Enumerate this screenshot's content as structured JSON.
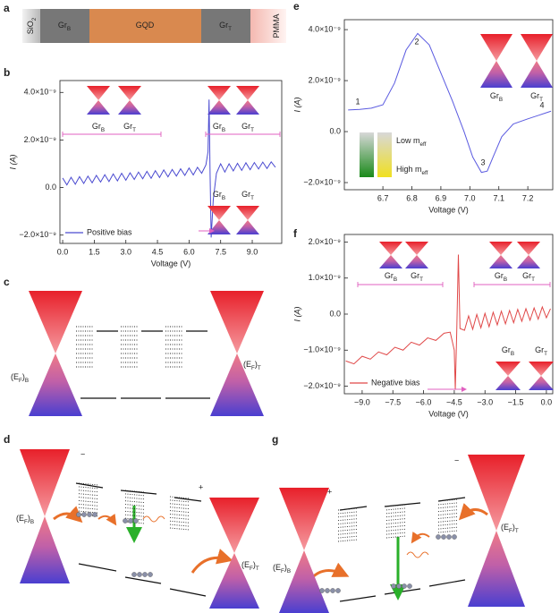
{
  "panel_letters": [
    "a",
    "b",
    "c",
    "d",
    "e",
    "f",
    "g"
  ],
  "layers": [
    [
      "SiO",
      "2"
    ],
    [
      "Gr",
      "B"
    ],
    [
      "GQD"
    ],
    [
      "Gr",
      "T"
    ],
    [
      "PMMA"
    ]
  ],
  "chart_data": [
    {
      "type": "line",
      "xlabel": "Voltage (V)",
      "ylabel": "I (A)",
      "xlim": [
        -0.13,
        10.4
      ],
      "ylim": [
        -2.35e-09,
        4.5e-09
      ],
      "xticks": [
        {
          "value": 0,
          "label": "0.0"
        },
        1.5,
        {
          "value": 3,
          "label": "3.0"
        },
        4.5,
        {
          "value": 6,
          "label": "6.0"
        },
        7.5,
        {
          "value": 9,
          "label": "9.0"
        }
      ],
      "yticks": [
        {
          "value": -2e-09,
          "label": "−2.0×10⁻⁹"
        },
        {
          "value": 0,
          "label": "0.0"
        },
        {
          "value": 2e-09,
          "label": "2.0×10⁻⁹"
        },
        {
          "value": 4e-09,
          "label": "4.0×10⁻⁹"
        }
      ],
      "legend": "lower left",
      "x": [
        0,
        0.2,
        0.4,
        0.6,
        0.8,
        1.0,
        1.2,
        1.4,
        1.6,
        1.8,
        2.0,
        2.2,
        2.4,
        2.6,
        2.8,
        3.0,
        3.2,
        3.4,
        3.6,
        3.8,
        4.0,
        4.2,
        4.4,
        4.6,
        4.8,
        5.0,
        5.2,
        5.4,
        5.6,
        5.8,
        6.0,
        6.2,
        6.4,
        6.6,
        6.8,
        6.9,
        6.95,
        7.0,
        7.05,
        7.15,
        7.3,
        7.5,
        7.7,
        7.9,
        8.1,
        8.3,
        8.5,
        8.7,
        8.9,
        9.1,
        9.3,
        9.5,
        9.7,
        9.9,
        10.1
      ],
      "series": [
        {
          "name": "Positive bias",
          "color": "#4a4ad0",
          "values": [
            4e-10,
            1.1e-10,
            4.3e-10,
            1.4e-10,
            4.6e-10,
            1.7e-10,
            4.8e-10,
            2e-10,
            5.1e-10,
            2.3e-10,
            5.4e-10,
            2.5e-10,
            5.7e-10,
            2.8e-10,
            6e-10,
            3.1e-10,
            6.2e-10,
            3.4e-10,
            6.5e-10,
            3.7e-10,
            6.8e-10,
            3.9e-10,
            7.1e-10,
            4.2e-10,
            7.4e-10,
            4.5e-10,
            7.6e-10,
            4.8e-10,
            7.9e-10,
            5.1e-10,
            8.2e-10,
            5.3e-10,
            8.5e-10,
            6e-10,
            9.5e-10,
            1.5e-09,
            3.7e-09,
            5e-10,
            -2.1e-09,
            -5e-10,
            6e-10,
            1e-09,
            6.5e-10,
            1e-09,
            7e-10,
            1.02e-09,
            7.2e-10,
            1.04e-09,
            7.5e-10,
            1.05e-09,
            7.8e-10,
            1.07e-09,
            8e-10,
            1.08e-09,
            8.5e-10
          ]
        }
      ],
      "insets": [
        [
          [
            "Gr",
            "B"
          ],
          [
            "Gr",
            "T"
          ]
        ],
        [
          [
            "Gr",
            "B"
          ],
          [
            "Gr",
            "T"
          ]
        ],
        [
          [
            "Gr",
            "B"
          ],
          [
            "Gr",
            "T"
          ]
        ]
      ]
    },
    {
      "type": "line",
      "xlabel": "Voltage (V)",
      "ylabel": "I (A)",
      "xlim": [
        6.567,
        7.286
      ],
      "ylim": [
        -2.28e-09,
        4.39e-09
      ],
      "xticks": [
        6.7,
        6.8,
        6.9,
        {
          "value": 7,
          "label": "7.0"
        },
        7.1,
        7.2
      ],
      "yticks": [
        {
          "value": -2e-09,
          "label": "−2.0×10⁻⁹"
        },
        {
          "value": 0,
          "label": "0.0"
        },
        {
          "value": 2e-09,
          "label": "2.0×10⁻⁹"
        },
        {
          "value": 4e-09,
          "label": "4.0×10⁻⁹"
        }
      ],
      "x": [
        6.58,
        6.62,
        6.66,
        6.7,
        6.74,
        6.78,
        6.82,
        6.86,
        6.9,
        6.94,
        6.98,
        7.01,
        7.04,
        7.06,
        7.08,
        7.11,
        7.15,
        7.2,
        7.24,
        7.28
      ],
      "series": [
        {
          "color": "#5a5ae0",
          "values": [
            8.5e-10,
            8.7e-10,
            9.2e-10,
            1.05e-09,
            1.9e-09,
            3.2e-09,
            3.85e-09,
            3.4e-09,
            2.3e-09,
            1.2e-09,
            0.0,
            -1e-09,
            -1.6e-09,
            -1.55e-09,
            -1e-09,
            -2e-10,
            3e-10,
            5e-10,
            6.5e-10,
            8e-10
          ]
        }
      ],
      "point_labels": [
        "1",
        "2",
        "3",
        "4"
      ],
      "point_label_colors": [
        "#3030a0",
        "#d8c400",
        "#22aa22",
        "#e03030"
      ],
      "insets": [
        [
          [
            "Gr",
            "B"
          ],
          [
            "Gr",
            "T"
          ]
        ]
      ],
      "colorbar_labels": [
        [
          "Low m",
          "eff"
        ],
        [
          "High m",
          "eff"
        ]
      ]
    },
    {
      "type": "line",
      "xlabel": "Voltage (V)",
      "ylabel": "I (A)",
      "xlim": [
        -9.87,
        0.31
      ],
      "ylim": [
        -2.21e-09,
        2.21e-09
      ],
      "xticks": [
        {
          "value": -9,
          "label": "−9.0"
        },
        {
          "value": -7.5,
          "label": "−7.5"
        },
        {
          "value": -6,
          "label": "−6.0"
        },
        {
          "value": -4.5,
          "label": "−4.5"
        },
        {
          "value": -3,
          "label": "−3.0"
        },
        {
          "value": -1.5,
          "label": "−1.5"
        },
        {
          "value": 0,
          "label": "0.0"
        }
      ],
      "yticks": [
        {
          "value": -2e-09,
          "label": "−2.0×10⁻⁹"
        },
        {
          "value": -1e-09,
          "label": "−1.0×10⁻⁹"
        },
        {
          "value": 0,
          "label": "0.0"
        },
        {
          "value": 1e-09,
          "label": "1.0×10⁻⁹"
        },
        {
          "value": 2e-09,
          "label": "2.0×10⁻⁹"
        }
      ],
      "legend": "lower left",
      "x": [
        -9.8,
        -9.4,
        -9.0,
        -8.6,
        -8.2,
        -7.8,
        -7.4,
        -7.0,
        -6.6,
        -6.2,
        -5.8,
        -5.4,
        -5.0,
        -4.7,
        -4.5,
        -4.45,
        -4.38,
        -4.3,
        -4.22,
        -4.0,
        -3.8,
        -3.6,
        -3.4,
        -3.2,
        -3.0,
        -2.8,
        -2.6,
        -2.4,
        -2.2,
        -2.0,
        -1.8,
        -1.6,
        -1.4,
        -1.2,
        -1.0,
        -0.8,
        -0.6,
        -0.4,
        -0.2,
        0.0,
        0.2
      ],
      "series": [
        {
          "name": "Negative bias",
          "color": "#e04848",
          "values": [
            -1.3e-09,
            -1.38e-09,
            -1.17e-09,
            -1.25e-09,
            -1.05e-09,
            -1.13e-09,
            -9.2e-10,
            -1e-09,
            -7.8e-10,
            -8.6e-10,
            -6.6e-10,
            -7.3e-10,
            -5.3e-10,
            -5e-10,
            -1e-09,
            -2.1e-09,
            -5e-10,
            1.65e-09,
            -4e-10,
            -4.5e-10,
            -5e-11,
            -4.2e-10,
            -1e-11,
            -3.8e-10,
            2e-11,
            -3.5e-10,
            5e-11,
            -3e-10,
            8e-11,
            -2.7e-10,
            1e-10,
            -2.4e-10,
            1.3e-10,
            -2e-10,
            1.5e-10,
            -1.7e-10,
            1.7e-10,
            -1.4e-10,
            2e-10,
            -1e-10,
            1.5e-10
          ]
        }
      ],
      "insets": [
        [
          [
            "Gr",
            "B"
          ],
          [
            "Gr",
            "T"
          ]
        ],
        [
          [
            "Gr",
            "B"
          ],
          [
            "Gr",
            "T"
          ]
        ],
        [
          [
            "Gr",
            "B"
          ],
          [
            "Gr",
            "T"
          ]
        ]
      ]
    }
  ],
  "diagram_c": {
    "labels": [
      [
        "(E",
        "F",
        ")",
        "B"
      ],
      [
        "(E",
        "F",
        ")",
        "T"
      ]
    ]
  },
  "diagram_d": {
    "labels": [
      [
        "(E",
        "F",
        ")",
        "B"
      ],
      [
        "(E",
        "F",
        ")",
        "T"
      ]
    ],
    "charges": [
      "−",
      "+"
    ]
  },
  "diagram_g": {
    "labels": [
      [
        "(E",
        "F",
        ")",
        "B"
      ],
      [
        "(E",
        "F",
        ")",
        "T"
      ]
    ],
    "charges": [
      "+",
      "−"
    ]
  }
}
